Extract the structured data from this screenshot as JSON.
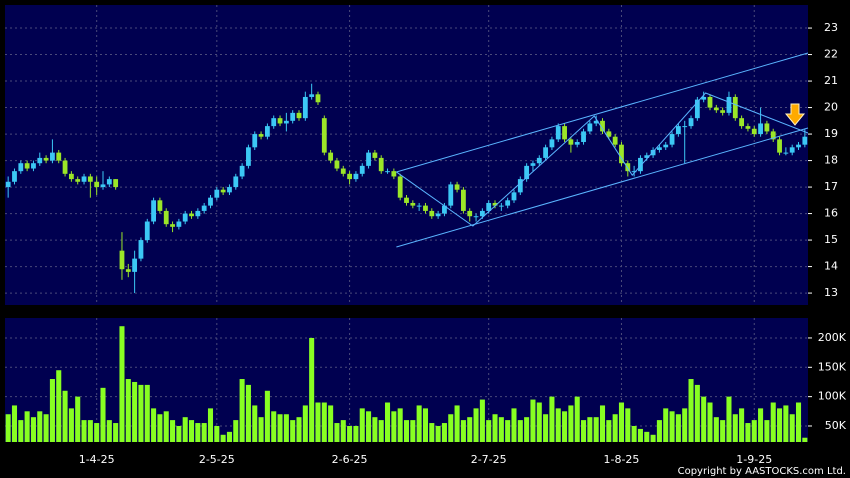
{
  "chart_data": {
    "type": "candlestick",
    "up_color": "#3cc8f5",
    "down_color": "#9be628",
    "line_color": "#5ab4ff",
    "grid": true,
    "footer": "Copyright by AASTOCKS.com Ltd.",
    "categories": [
      null,
      null,
      null,
      null,
      null,
      null,
      null,
      null,
      null,
      null,
      null,
      null,
      null,
      null,
      "1-4-25",
      null,
      null,
      null,
      null,
      null,
      null,
      null,
      null,
      null,
      null,
      null,
      null,
      null,
      null,
      null,
      null,
      null,
      null,
      "2-5-25",
      null,
      null,
      null,
      null,
      null,
      null,
      null,
      null,
      null,
      null,
      null,
      null,
      null,
      null,
      null,
      null,
      null,
      null,
      null,
      null,
      "2-6-25",
      null,
      null,
      null,
      null,
      null,
      null,
      null,
      null,
      null,
      null,
      null,
      null,
      null,
      null,
      null,
      null,
      null,
      null,
      null,
      null,
      null,
      "2-7-25",
      null,
      null,
      null,
      null,
      null,
      null,
      null,
      null,
      null,
      null,
      null,
      null,
      null,
      null,
      null,
      null,
      null,
      null,
      null,
      null,
      "1-8-25",
      null,
      null,
      null,
      null,
      null,
      null,
      null,
      null,
      null,
      null,
      null,
      null,
      null,
      null,
      null,
      null,
      null,
      null,
      null,
      null,
      "1-9-25",
      null,
      null,
      null,
      null,
      null,
      null,
      null,
      null
    ],
    "ohlc": [
      [
        17.0,
        17.4,
        16.6,
        17.2
      ],
      [
        17.2,
        17.7,
        17.1,
        17.6
      ],
      [
        17.6,
        18.0,
        17.5,
        17.9
      ],
      [
        17.9,
        18.0,
        17.6,
        17.7
      ],
      [
        17.7,
        18.0,
        17.6,
        17.9
      ],
      [
        17.9,
        18.3,
        17.8,
        18.1
      ],
      [
        18.1,
        18.2,
        17.9,
        18.0
      ],
      [
        18.0,
        18.8,
        17.9,
        18.3
      ],
      [
        18.3,
        18.4,
        17.9,
        18.0
      ],
      [
        18.0,
        18.1,
        17.4,
        17.5
      ],
      [
        17.5,
        17.6,
        17.2,
        17.3
      ],
      [
        17.3,
        17.4,
        17.1,
        17.2
      ],
      [
        17.2,
        17.5,
        17.1,
        17.4
      ],
      [
        17.4,
        17.5,
        16.6,
        17.2
      ],
      [
        17.2,
        17.4,
        16.7,
        17.0
      ],
      [
        17.0,
        17.6,
        16.9,
        17.1
      ],
      [
        17.1,
        17.4,
        17.0,
        17.3
      ],
      [
        17.3,
        17.3,
        16.9,
        17.0
      ],
      [
        14.6,
        15.3,
        13.5,
        13.9
      ],
      [
        13.9,
        14.1,
        13.6,
        13.8
      ],
      [
        13.8,
        14.6,
        13.0,
        14.3
      ],
      [
        14.3,
        15.1,
        14.2,
        15.0
      ],
      [
        15.0,
        15.8,
        14.9,
        15.7
      ],
      [
        15.7,
        16.6,
        15.6,
        16.5
      ],
      [
        16.5,
        16.6,
        16.0,
        16.1
      ],
      [
        16.1,
        16.2,
        15.5,
        15.6
      ],
      [
        15.6,
        15.7,
        15.3,
        15.5
      ],
      [
        15.5,
        15.8,
        15.4,
        15.7
      ],
      [
        15.7,
        16.1,
        15.6,
        16.0
      ],
      [
        16.0,
        16.1,
        15.8,
        15.9
      ],
      [
        15.9,
        16.2,
        15.8,
        16.1
      ],
      [
        16.1,
        16.4,
        16.0,
        16.3
      ],
      [
        16.3,
        16.7,
        16.2,
        16.6
      ],
      [
        16.6,
        17.0,
        16.5,
        16.9
      ],
      [
        16.9,
        17.0,
        16.7,
        16.8
      ],
      [
        16.8,
        17.1,
        16.7,
        17.0
      ],
      [
        17.0,
        17.5,
        16.9,
        17.4
      ],
      [
        17.4,
        17.9,
        17.3,
        17.8
      ],
      [
        17.8,
        18.6,
        17.7,
        18.5
      ],
      [
        18.5,
        19.1,
        18.4,
        19.0
      ],
      [
        19.0,
        19.1,
        18.8,
        18.9
      ],
      [
        18.9,
        19.4,
        18.8,
        19.3
      ],
      [
        19.3,
        19.7,
        19.2,
        19.6
      ],
      [
        19.6,
        19.7,
        19.3,
        19.4
      ],
      [
        19.4,
        19.8,
        19.1,
        19.5
      ],
      [
        19.5,
        19.9,
        19.4,
        19.8
      ],
      [
        19.8,
        19.9,
        19.5,
        19.6
      ],
      [
        19.6,
        20.6,
        19.5,
        20.4
      ],
      [
        20.4,
        20.9,
        20.3,
        20.5
      ],
      [
        20.5,
        20.6,
        20.1,
        20.2
      ],
      [
        19.6,
        19.7,
        18.2,
        18.3
      ],
      [
        18.3,
        18.4,
        17.9,
        18.0
      ],
      [
        18.0,
        18.1,
        17.6,
        17.7
      ],
      [
        17.7,
        17.8,
        17.4,
        17.5
      ],
      [
        17.5,
        17.6,
        17.1,
        17.3
      ],
      [
        17.3,
        17.6,
        17.2,
        17.5
      ],
      [
        17.5,
        17.9,
        17.4,
        17.8
      ],
      [
        17.8,
        18.4,
        17.7,
        18.3
      ],
      [
        18.3,
        18.4,
        18.0,
        18.1
      ],
      [
        18.1,
        18.2,
        17.5,
        17.6
      ],
      [
        17.6,
        17.7,
        17.5,
        17.6
      ],
      [
        17.6,
        17.7,
        17.3,
        17.4
      ],
      [
        17.4,
        17.5,
        16.5,
        16.6
      ],
      [
        16.6,
        16.7,
        16.3,
        16.4
      ],
      [
        16.4,
        16.5,
        16.2,
        16.3
      ],
      [
        16.3,
        16.4,
        16.1,
        16.3
      ],
      [
        16.3,
        16.4,
        16.0,
        16.1
      ],
      [
        16.1,
        16.2,
        15.8,
        15.9
      ],
      [
        15.9,
        16.1,
        15.8,
        16.0
      ],
      [
        16.0,
        16.4,
        15.9,
        16.3
      ],
      [
        16.3,
        17.2,
        16.2,
        17.1
      ],
      [
        17.1,
        17.2,
        16.8,
        16.9
      ],
      [
        16.9,
        17.0,
        16.0,
        16.1
      ],
      [
        16.1,
        16.2,
        15.7,
        15.9
      ],
      [
        15.9,
        16.0,
        15.7,
        15.9
      ],
      [
        15.9,
        16.2,
        15.8,
        16.1
      ],
      [
        16.1,
        16.5,
        16.0,
        16.4
      ],
      [
        16.4,
        16.5,
        16.2,
        16.3
      ],
      [
        16.3,
        16.4,
        16.1,
        16.3
      ],
      [
        16.3,
        16.6,
        16.2,
        16.5
      ],
      [
        16.5,
        16.9,
        16.4,
        16.8
      ],
      [
        16.8,
        17.4,
        16.7,
        17.3
      ],
      [
        17.3,
        17.9,
        17.2,
        17.8
      ],
      [
        17.8,
        18.0,
        17.6,
        17.9
      ],
      [
        17.9,
        18.2,
        17.8,
        18.1
      ],
      [
        18.1,
        18.6,
        18.0,
        18.5
      ],
      [
        18.5,
        18.9,
        18.4,
        18.8
      ],
      [
        18.8,
        19.4,
        18.7,
        19.3
      ],
      [
        19.3,
        19.4,
        18.7,
        18.8
      ],
      [
        18.8,
        18.9,
        18.3,
        18.6
      ],
      [
        18.6,
        18.8,
        18.5,
        18.7
      ],
      [
        18.7,
        19.2,
        18.6,
        19.1
      ],
      [
        19.1,
        19.5,
        19.0,
        19.4
      ],
      [
        19.4,
        19.7,
        19.3,
        19.5
      ],
      [
        19.5,
        19.6,
        19.0,
        19.1
      ],
      [
        19.1,
        19.2,
        18.8,
        18.9
      ],
      [
        18.9,
        19.0,
        18.5,
        18.6
      ],
      [
        18.6,
        18.7,
        17.8,
        17.9
      ],
      [
        17.9,
        18.0,
        17.4,
        17.6
      ],
      [
        17.6,
        17.8,
        17.4,
        17.6
      ],
      [
        17.6,
        18.2,
        17.5,
        18.1
      ],
      [
        18.1,
        18.3,
        18.0,
        18.2
      ],
      [
        18.2,
        18.5,
        18.1,
        18.4
      ],
      [
        18.4,
        18.6,
        18.3,
        18.5
      ],
      [
        18.5,
        18.7,
        18.4,
        18.6
      ],
      [
        18.6,
        19.1,
        18.5,
        19.0
      ],
      [
        19.0,
        19.4,
        18.9,
        19.3
      ],
      [
        19.3,
        19.5,
        17.9,
        19.3
      ],
      [
        19.3,
        19.7,
        19.2,
        19.6
      ],
      [
        19.6,
        20.4,
        19.5,
        20.3
      ],
      [
        20.3,
        20.6,
        20.2,
        20.4
      ],
      [
        20.4,
        20.5,
        19.9,
        20.0
      ],
      [
        20.0,
        20.1,
        19.8,
        19.9
      ],
      [
        19.9,
        20.0,
        19.7,
        19.8
      ],
      [
        19.8,
        20.6,
        19.7,
        20.4
      ],
      [
        20.4,
        20.5,
        19.5,
        19.6
      ],
      [
        19.6,
        19.7,
        19.2,
        19.3
      ],
      [
        19.3,
        19.4,
        19.1,
        19.2
      ],
      [
        19.2,
        19.3,
        18.9,
        19.0
      ],
      [
        19.0,
        20.0,
        18.9,
        19.4
      ],
      [
        19.4,
        19.5,
        19.0,
        19.1
      ],
      [
        19.1,
        19.2,
        18.7,
        18.8
      ],
      [
        18.8,
        18.9,
        18.2,
        18.3
      ],
      [
        18.3,
        18.5,
        18.2,
        18.3
      ],
      [
        18.3,
        18.6,
        18.2,
        18.5
      ],
      [
        18.5,
        18.7,
        18.4,
        18.6
      ],
      [
        18.6,
        19.2,
        18.5,
        18.9
      ]
    ],
    "ylim": [
      12.55,
      23.87
    ],
    "yticks": [
      13,
      14,
      15,
      16,
      17,
      18,
      19,
      20,
      21,
      22,
      23
    ],
    "lines": [
      {
        "x": [
          61.4,
          126.5
        ],
        "y": [
          17.57,
          22.06
        ]
      },
      {
        "x": [
          61.4,
          126.5
        ],
        "y": [
          14.74,
          19.23
        ]
      },
      {
        "x": [
          61.4,
          73.5,
          92.7,
          98.7,
          110.3,
          126.5
        ],
        "y": [
          17.57,
          15.53,
          19.68,
          17.45,
          20.55,
          19.04
        ]
      }
    ],
    "volume": {
      "color": "#88ff22",
      "ylim": [
        22700,
        234000
      ],
      "yticks": [
        {
          "value": 50000,
          "label": "50K"
        },
        {
          "value": 100000,
          "label": "100K"
        },
        {
          "value": 150000,
          "label": "150K"
        },
        {
          "value": 200000,
          "label": "200K"
        }
      ],
      "values": [
        70000,
        85000,
        60000,
        75000,
        65000,
        75000,
        70000,
        130000,
        145000,
        110000,
        80000,
        100000,
        60000,
        60000,
        55000,
        115000,
        60000,
        55000,
        220000,
        130000,
        125000,
        120000,
        120000,
        80000,
        70000,
        75000,
        60000,
        50000,
        65000,
        60000,
        55000,
        55000,
        80000,
        50000,
        35000,
        40000,
        60000,
        130000,
        120000,
        85000,
        65000,
        110000,
        75000,
        70000,
        70000,
        60000,
        65000,
        85000,
        200000,
        90000,
        90000,
        85000,
        55000,
        60000,
        50000,
        50000,
        80000,
        75000,
        65000,
        60000,
        90000,
        75000,
        80000,
        60000,
        60000,
        85000,
        80000,
        55000,
        50000,
        55000,
        70000,
        85000,
        60000,
        65000,
        80000,
        95000,
        60000,
        70000,
        65000,
        60000,
        80000,
        60000,
        65000,
        95000,
        90000,
        70000,
        100000,
        80000,
        75000,
        85000,
        100000,
        60000,
        65000,
        65000,
        85000,
        60000,
        70000,
        90000,
        80000,
        50000,
        45000,
        40000,
        35000,
        60000,
        80000,
        75000,
        70000,
        80000,
        130000,
        120000,
        100000,
        90000,
        65000,
        60000,
        100000,
        70000,
        80000,
        55000,
        60000,
        80000,
        60000,
        90000,
        80000,
        85000,
        70000,
        90000,
        30000
      ]
    }
  }
}
